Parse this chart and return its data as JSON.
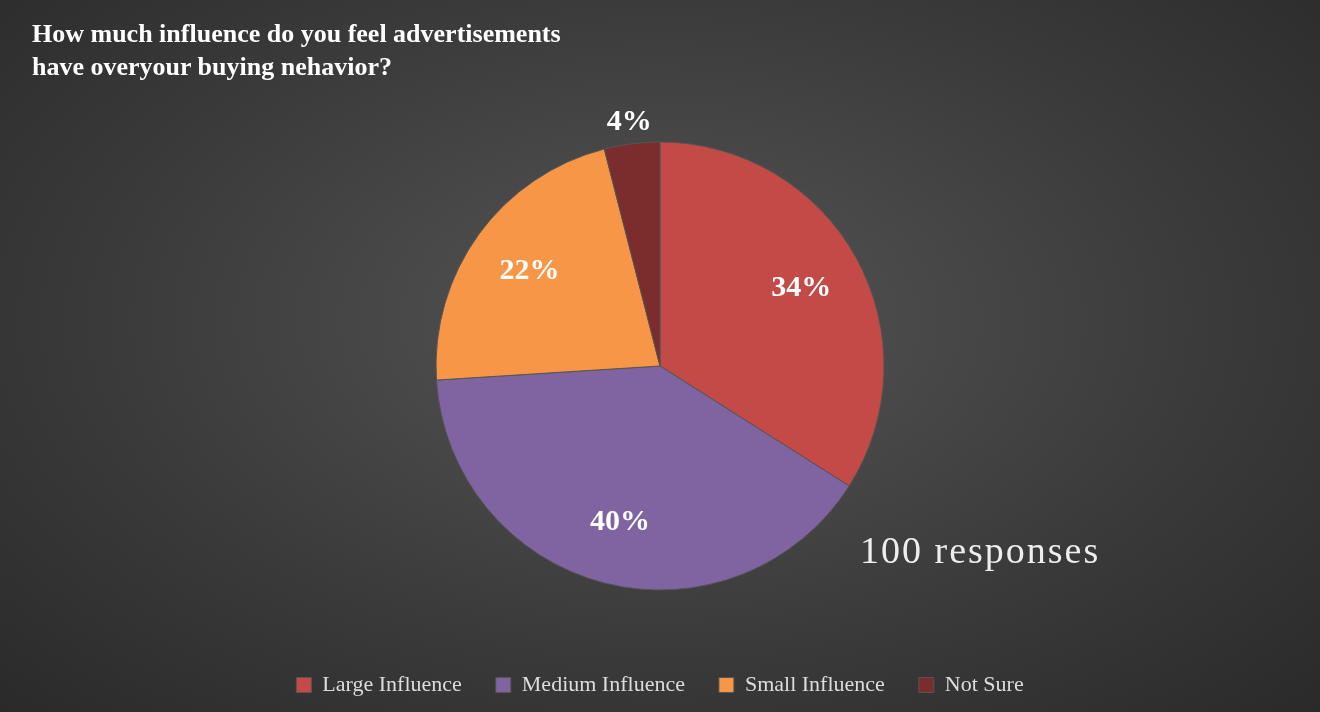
{
  "chart_data": {
    "type": "pie",
    "title": "How much influence do you feel advertisements\nhave overyour buying nehavior?",
    "categories": [
      "Large Influence",
      "Medium Influence",
      "Small Influence",
      "Not Sure"
    ],
    "values": [
      34,
      40,
      22,
      4
    ],
    "colors": [
      "#c44a47",
      "#8064a2",
      "#f79646",
      "#7b2c2c"
    ],
    "value_labels": [
      "34%",
      "40%",
      "22%",
      "4%"
    ],
    "legend": "bottom",
    "annotations": [
      "100 responses"
    ]
  }
}
